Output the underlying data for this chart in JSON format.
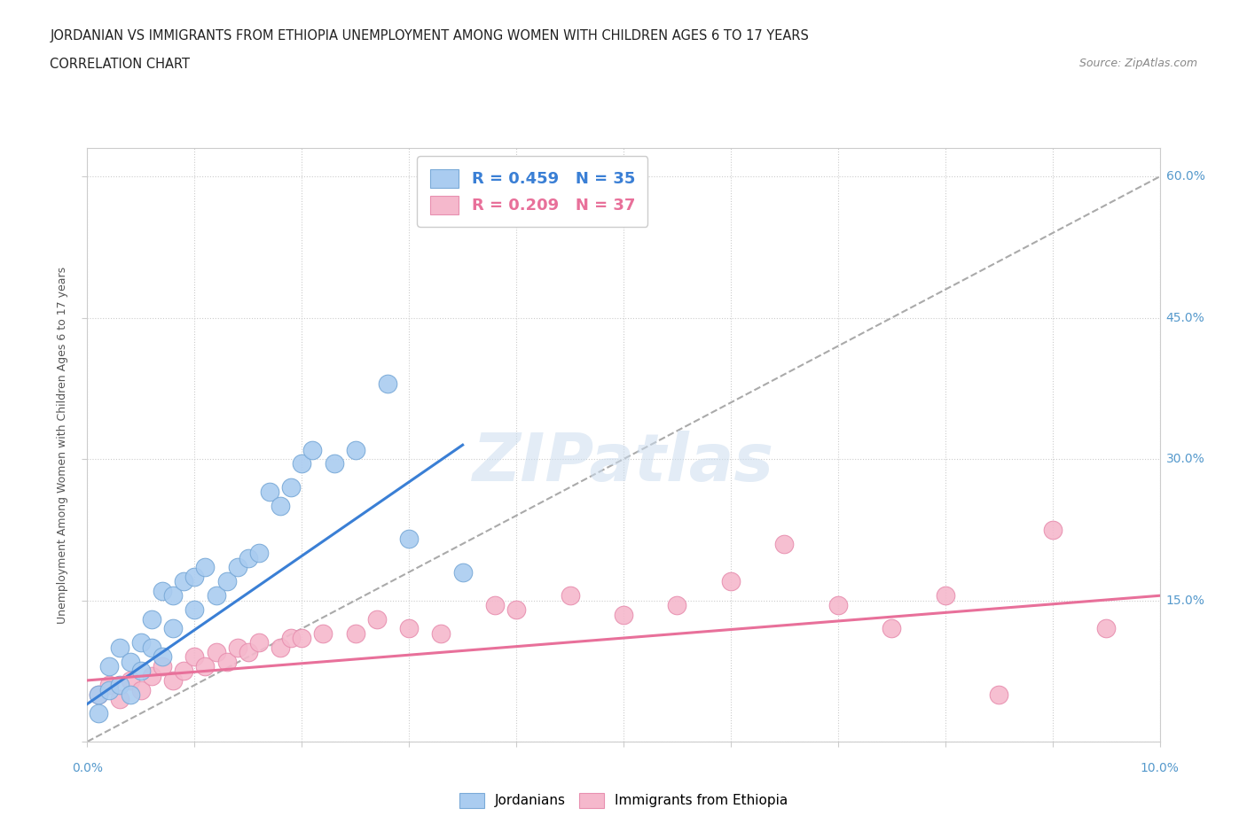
{
  "title_line1": "JORDANIAN VS IMMIGRANTS FROM ETHIOPIA UNEMPLOYMENT AMONG WOMEN WITH CHILDREN AGES 6 TO 17 YEARS",
  "title_line2": "CORRELATION CHART",
  "source_text": "Source: ZipAtlas.com",
  "xlim": [
    0.0,
    0.1
  ],
  "ylim": [
    0.0,
    0.63
  ],
  "jordanian_R": 0.459,
  "jordanian_N": 35,
  "ethiopia_R": 0.209,
  "ethiopia_N": 37,
  "jordanian_color": "#aaccf0",
  "jordanian_edge": "#7aaad8",
  "ethiopia_color": "#f5b8cc",
  "ethiopia_edge": "#e890b0",
  "blue_line_color": "#3a7fd5",
  "pink_line_color": "#e8709a",
  "dashed_line_color": "#aaaaaa",
  "background_color": "#ffffff",
  "watermark_color": "#ccddef",
  "label_color": "#5599cc",
  "jordanian_x": [
    0.001,
    0.001,
    0.002,
    0.002,
    0.003,
    0.003,
    0.004,
    0.004,
    0.005,
    0.005,
    0.006,
    0.006,
    0.007,
    0.007,
    0.008,
    0.008,
    0.009,
    0.01,
    0.01,
    0.011,
    0.012,
    0.013,
    0.014,
    0.015,
    0.016,
    0.017,
    0.018,
    0.019,
    0.02,
    0.021,
    0.023,
    0.025,
    0.028,
    0.03,
    0.035
  ],
  "jordanian_y": [
    0.05,
    0.03,
    0.055,
    0.08,
    0.06,
    0.1,
    0.05,
    0.085,
    0.075,
    0.105,
    0.1,
    0.13,
    0.09,
    0.16,
    0.12,
    0.155,
    0.17,
    0.14,
    0.175,
    0.185,
    0.155,
    0.17,
    0.185,
    0.195,
    0.2,
    0.265,
    0.25,
    0.27,
    0.295,
    0.31,
    0.295,
    0.31,
    0.38,
    0.215,
    0.18
  ],
  "ethiopia_x": [
    0.001,
    0.002,
    0.003,
    0.004,
    0.005,
    0.006,
    0.007,
    0.008,
    0.009,
    0.01,
    0.011,
    0.012,
    0.013,
    0.014,
    0.015,
    0.016,
    0.018,
    0.019,
    0.02,
    0.022,
    0.025,
    0.027,
    0.03,
    0.033,
    0.038,
    0.04,
    0.045,
    0.05,
    0.055,
    0.06,
    0.065,
    0.07,
    0.075,
    0.08,
    0.085,
    0.09,
    0.095
  ],
  "ethiopia_y": [
    0.05,
    0.06,
    0.045,
    0.065,
    0.055,
    0.07,
    0.08,
    0.065,
    0.075,
    0.09,
    0.08,
    0.095,
    0.085,
    0.1,
    0.095,
    0.105,
    0.1,
    0.11,
    0.11,
    0.115,
    0.115,
    0.13,
    0.12,
    0.115,
    0.145,
    0.14,
    0.155,
    0.135,
    0.145,
    0.17,
    0.21,
    0.145,
    0.12,
    0.155,
    0.05,
    0.225,
    0.12
  ],
  "blue_line_x": [
    0.0,
    0.035
  ],
  "blue_line_y": [
    0.04,
    0.315
  ],
  "pink_line_x": [
    0.0,
    0.1
  ],
  "pink_line_y": [
    0.065,
    0.155
  ],
  "dashed_line_x": [
    0.0,
    0.1
  ],
  "dashed_line_y": [
    0.0,
    0.6
  ]
}
